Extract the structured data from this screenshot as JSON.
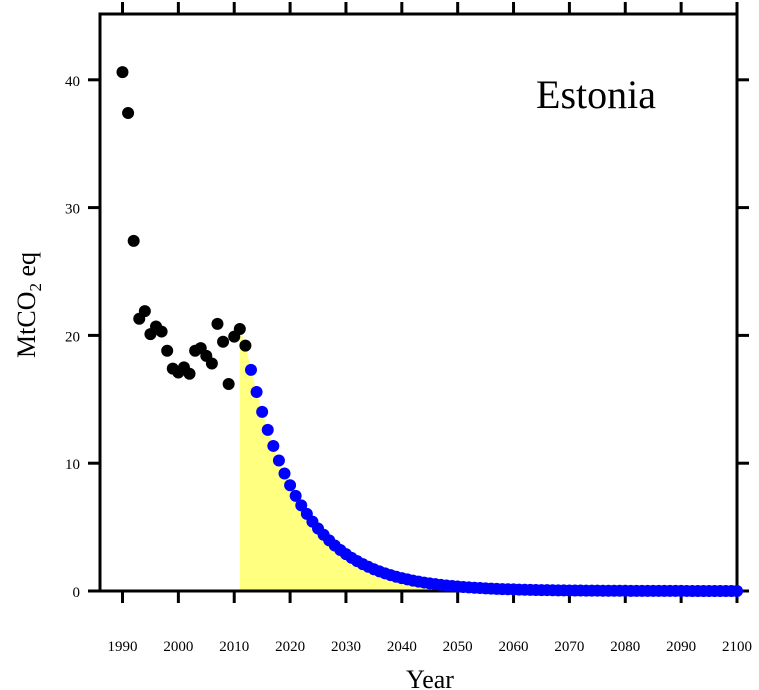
{
  "chart_data": {
    "type": "scatter",
    "title": "Estonia",
    "xlabel": "Year",
    "ylabel": {
      "main": "MtCO",
      "sub": "2",
      "suffix": " eq"
    },
    "xlim": [
      1990,
      2100
    ],
    "ylim": [
      0,
      45
    ],
    "x_ticks": [
      "1990",
      "2000",
      "2010",
      "2020",
      "2030",
      "2040",
      "2050",
      "2060",
      "2070",
      "2080",
      "2090",
      "2100"
    ],
    "y_ticks": [
      "0",
      "10",
      "20",
      "30",
      "40"
    ],
    "colors": {
      "historical": "#000000",
      "projection": "#0000ff",
      "fill": "#ffff80"
    },
    "series": [
      {
        "kind": "historical",
        "points": [
          [
            1990,
            40.6
          ],
          [
            1991,
            37.4
          ],
          [
            1992,
            27.4
          ],
          [
            1993,
            21.3
          ],
          [
            1994,
            21.9
          ],
          [
            1995,
            20.1
          ],
          [
            1996,
            20.7
          ],
          [
            1997,
            20.3
          ],
          [
            1998,
            18.8
          ],
          [
            1999,
            17.4
          ],
          [
            2000,
            17.1
          ],
          [
            2001,
            17.5
          ],
          [
            2002,
            17.0
          ],
          [
            2003,
            18.8
          ],
          [
            2004,
            19.0
          ],
          [
            2005,
            18.4
          ],
          [
            2006,
            17.8
          ],
          [
            2007,
            20.9
          ],
          [
            2008,
            19.5
          ],
          [
            2009,
            16.2
          ],
          [
            2010,
            19.9
          ],
          [
            2011,
            20.5
          ],
          [
            2012,
            19.2
          ]
        ]
      },
      {
        "kind": "projection",
        "start_year": 2013,
        "end_year": 2100,
        "start_value": 17.3,
        "annual_decay": 0.9,
        "fill_from_year": 2011
      }
    ]
  }
}
